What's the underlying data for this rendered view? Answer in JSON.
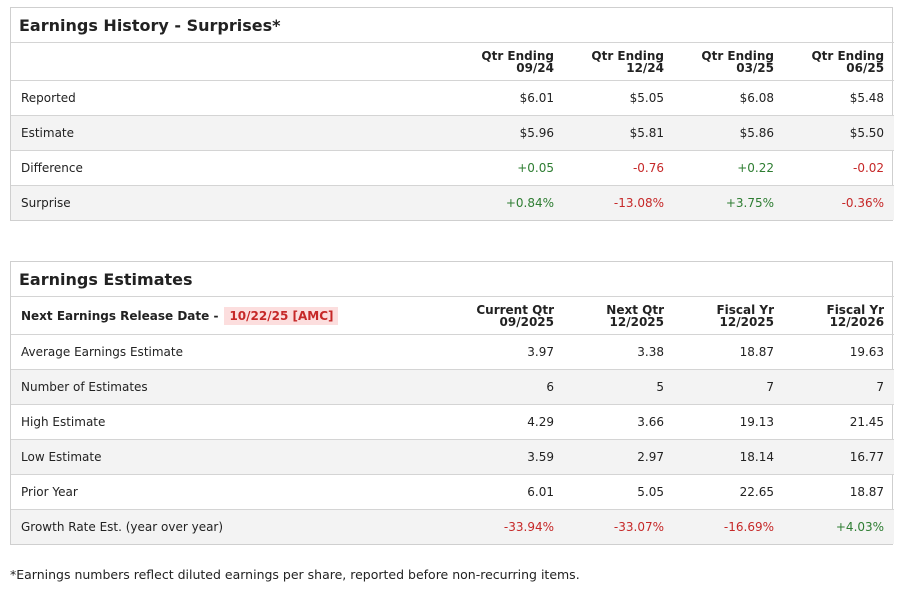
{
  "earnings_history": {
    "title": "Earnings History - Surprises*",
    "columns": [
      {
        "line1": "Qtr Ending",
        "line2": "09/24"
      },
      {
        "line1": "Qtr Ending",
        "line2": "12/24"
      },
      {
        "line1": "Qtr Ending",
        "line2": "03/25"
      },
      {
        "line1": "Qtr Ending",
        "line2": "06/25"
      }
    ],
    "rows": [
      {
        "label": "Reported",
        "values": [
          "$6.01",
          "$5.05",
          "$6.08",
          "$5.48"
        ]
      },
      {
        "label": "Estimate",
        "values": [
          "$5.96",
          "$5.81",
          "$5.86",
          "$5.50"
        ]
      },
      {
        "label": "Difference",
        "values": [
          "+0.05",
          "-0.76",
          "+0.22",
          "-0.02"
        ]
      },
      {
        "label": "Surprise",
        "values": [
          "+0.84%",
          "-13.08%",
          "+3.75%",
          "-0.36%"
        ]
      }
    ]
  },
  "earnings_estimates": {
    "title": "Earnings Estimates",
    "release_label": "Next Earnings Release Date -",
    "release_date": "10/22/25 [AMC]",
    "columns": [
      {
        "line1": "Current Qtr",
        "line2": "09/2025"
      },
      {
        "line1": "Next Qtr",
        "line2": "12/2025"
      },
      {
        "line1": "Fiscal Yr",
        "line2": "12/2025"
      },
      {
        "line1": "Fiscal Yr",
        "line2": "12/2026"
      }
    ],
    "rows": [
      {
        "label": "Average Earnings Estimate",
        "values": [
          "3.97",
          "3.38",
          "18.87",
          "19.63"
        ]
      },
      {
        "label": "Number of Estimates",
        "values": [
          "6",
          "5",
          "7",
          "7"
        ]
      },
      {
        "label": "High Estimate",
        "values": [
          "4.29",
          "3.66",
          "19.13",
          "21.45"
        ]
      },
      {
        "label": "Low Estimate",
        "values": [
          "3.59",
          "2.97",
          "18.14",
          "16.77"
        ]
      },
      {
        "label": "Prior Year",
        "values": [
          "6.01",
          "5.05",
          "22.65",
          "18.87"
        ]
      },
      {
        "label": "Growth Rate Est. (year over year)",
        "values": [
          "-33.94%",
          "-33.07%",
          "-16.69%",
          "+4.03%"
        ]
      }
    ]
  },
  "footnote": "*Earnings numbers reflect diluted earnings per share, reported before non-recurring items."
}
